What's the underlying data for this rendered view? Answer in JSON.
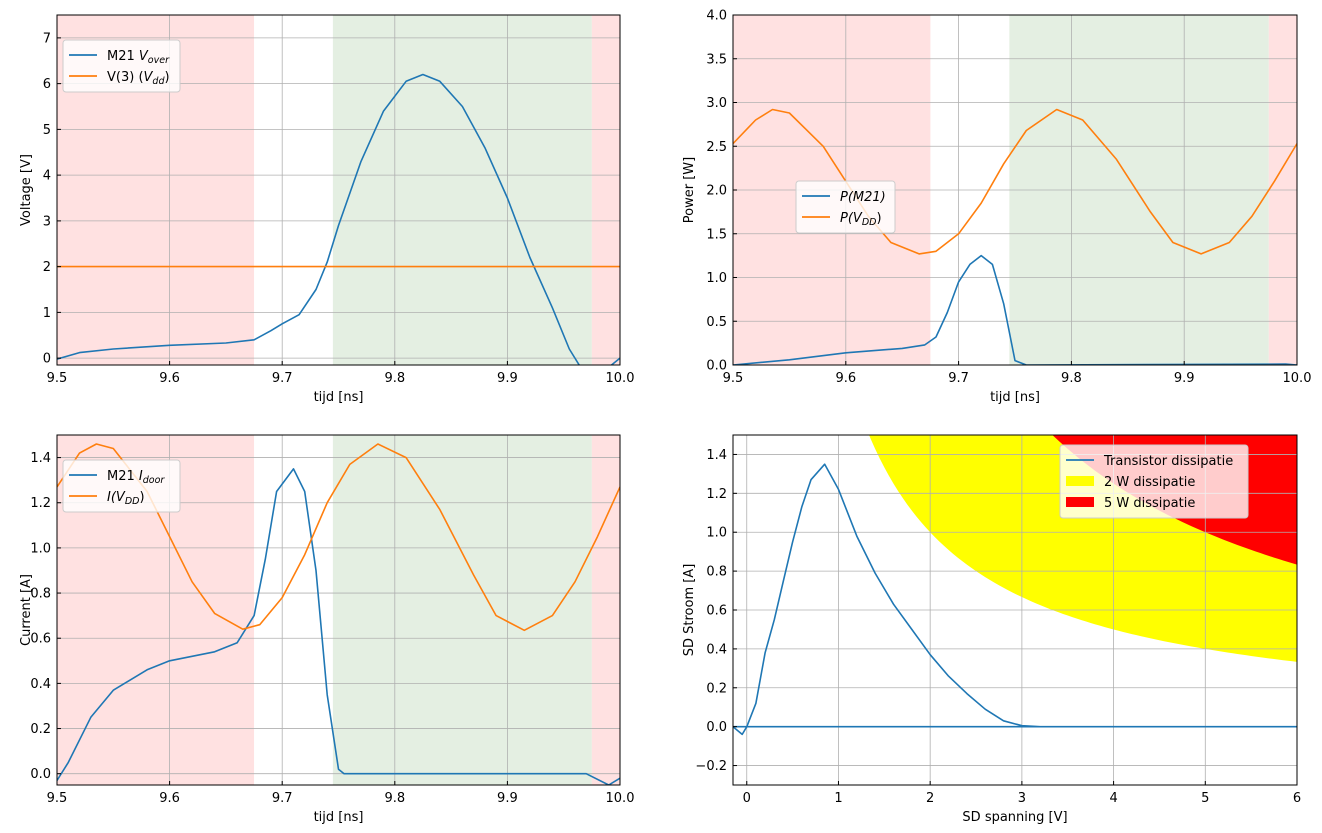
{
  "colors": {
    "blue": "#1f77b4",
    "orange": "#ff7f0e",
    "red_region": "#ffe1e1",
    "green_region": "#e4efe2",
    "yellow": "#ffff00",
    "red": "#ff0000"
  },
  "chart_data": [
    {
      "type": "line",
      "id": "voltage",
      "xlabel": "tijd [ns]",
      "ylabel": "Voltage [V]",
      "xlim": [
        9.5,
        10.0
      ],
      "ylim": [
        -0.15,
        7.5
      ],
      "xticks": [
        9.5,
        9.6,
        9.7,
        9.8,
        9.9,
        10.0
      ],
      "xtick_labels": [
        "9.5",
        "9.6",
        "9.7",
        "9.8",
        "9.9",
        "10.0"
      ],
      "yticks": [
        0,
        1,
        2,
        3,
        4,
        5,
        6,
        7
      ],
      "ytick_labels": [
        "0",
        "1",
        "2",
        "3",
        "4",
        "5",
        "6",
        "7"
      ],
      "grid": true,
      "legend_placement": "upper-left",
      "regions": [
        {
          "from": 9.5,
          "to": 9.675,
          "color": "red"
        },
        {
          "from": 9.745,
          "to": 9.975,
          "color": "green"
        },
        {
          "from": 9.975,
          "to": 10.0,
          "color": "red"
        }
      ],
      "series": [
        {
          "name": "M21 V_over",
          "legend": {
            "prefix": "M21 ",
            "italic": "V",
            "sub": "over",
            "suffix": ""
          },
          "color": "blue",
          "x": [
            9.5,
            9.52,
            9.55,
            9.6,
            9.65,
            9.675,
            9.69,
            9.7,
            9.715,
            9.73,
            9.74,
            9.75,
            9.77,
            9.79,
            9.81,
            9.825,
            9.84,
            9.86,
            9.88,
            9.9,
            9.92,
            9.94,
            9.955,
            9.965,
            9.99,
            10.0
          ],
          "y": [
            -0.02,
            0.12,
            0.2,
            0.28,
            0.33,
            0.4,
            0.6,
            0.75,
            0.95,
            1.5,
            2.1,
            2.9,
            4.3,
            5.4,
            6.05,
            6.2,
            6.05,
            5.5,
            4.6,
            3.5,
            2.2,
            1.1,
            0.2,
            -0.2,
            -0.2,
            0.0
          ]
        },
        {
          "name": "V(3) (V_dd)",
          "legend": {
            "prefix": "V(3) (",
            "italic": "V",
            "sub": "dd",
            "suffix": ")"
          },
          "color": "orange",
          "x": [
            9.5,
            10.0
          ],
          "y": [
            2,
            2
          ]
        }
      ]
    },
    {
      "type": "line",
      "id": "power",
      "xlabel": "tijd [ns]",
      "ylabel": "Power [W]",
      "xlim": [
        9.5,
        10.0
      ],
      "ylim": [
        0,
        4
      ],
      "xticks": [
        9.5,
        9.6,
        9.7,
        9.8,
        9.9,
        10.0
      ],
      "xtick_labels": [
        "9.5",
        "9.6",
        "9.7",
        "9.8",
        "9.9",
        "10.0"
      ],
      "yticks": [
        0,
        0.5,
        1,
        1.5,
        2,
        2.5,
        3,
        3.5,
        4
      ],
      "ytick_labels": [
        "0.0",
        "0.5",
        "1.0",
        "1.5",
        "2.0",
        "2.5",
        "3.0",
        "3.5",
        "4.0"
      ],
      "grid": true,
      "legend_placement": "center-left",
      "regions": [
        {
          "from": 9.5,
          "to": 9.675,
          "color": "red"
        },
        {
          "from": 9.745,
          "to": 9.975,
          "color": "green"
        },
        {
          "from": 9.975,
          "to": 10.0,
          "color": "red"
        }
      ],
      "series": [
        {
          "name": "P(M21)",
          "legend": {
            "prefix": "",
            "italic": "P(M21)",
            "sub": "",
            "suffix": ""
          },
          "color": "blue",
          "x": [
            9.5,
            9.55,
            9.6,
            9.65,
            9.67,
            9.68,
            9.69,
            9.7,
            9.71,
            9.72,
            9.73,
            9.74,
            9.75,
            9.76,
            9.99,
            10.0
          ],
          "y": [
            0,
            0.06,
            0.14,
            0.19,
            0.23,
            0.32,
            0.6,
            0.95,
            1.15,
            1.25,
            1.15,
            0.7,
            0.05,
            0,
            0.01,
            0
          ]
        },
        {
          "name": "P(V_DD)",
          "legend": {
            "prefix": "",
            "italic": "P(V",
            "sub": "DD",
            "suffix": ")"
          },
          "color": "orange",
          "x": [
            9.5,
            9.52,
            9.535,
            9.55,
            9.58,
            9.6,
            9.62,
            9.64,
            9.665,
            9.68,
            9.7,
            9.72,
            9.74,
            9.76,
            9.787,
            9.81,
            9.84,
            9.87,
            9.89,
            9.915,
            9.94,
            9.96,
            9.98,
            10.0
          ],
          "y": [
            2.53,
            2.8,
            2.92,
            2.88,
            2.5,
            2.1,
            1.7,
            1.4,
            1.27,
            1.3,
            1.5,
            1.85,
            2.3,
            2.68,
            2.92,
            2.8,
            2.35,
            1.75,
            1.4,
            1.27,
            1.4,
            1.7,
            2.1,
            2.53
          ]
        }
      ]
    },
    {
      "type": "line",
      "id": "current",
      "xlabel": "tijd [ns]",
      "ylabel": "Current [A]",
      "xlim": [
        9.5,
        10.0
      ],
      "ylim": [
        -0.05,
        1.5
      ],
      "xticks": [
        9.5,
        9.6,
        9.7,
        9.8,
        9.9,
        10.0
      ],
      "xtick_labels": [
        "9.5",
        "9.6",
        "9.7",
        "9.8",
        "9.9",
        "10.0"
      ],
      "yticks": [
        0,
        0.2,
        0.4,
        0.6,
        0.8,
        1.0,
        1.2,
        1.4
      ],
      "ytick_labels": [
        "0.0",
        "0.2",
        "0.4",
        "0.6",
        "0.8",
        "1.0",
        "1.2",
        "1.4"
      ],
      "grid": true,
      "legend_placement": "upper-left",
      "regions": [
        {
          "from": 9.5,
          "to": 9.675,
          "color": "red"
        },
        {
          "from": 9.745,
          "to": 9.975,
          "color": "green"
        },
        {
          "from": 9.975,
          "to": 10.0,
          "color": "red"
        }
      ],
      "series": [
        {
          "name": "M21 I_door",
          "legend": {
            "prefix": "M21 ",
            "italic": "I",
            "sub": "door",
            "suffix": ""
          },
          "color": "blue",
          "x": [
            9.5,
            9.51,
            9.53,
            9.55,
            9.58,
            9.6,
            9.64,
            9.66,
            9.675,
            9.685,
            9.695,
            9.71,
            9.72,
            9.73,
            9.74,
            9.75,
            9.755,
            9.97,
            9.99,
            10.0
          ],
          "y": [
            -0.03,
            0.05,
            0.25,
            0.37,
            0.46,
            0.5,
            0.54,
            0.58,
            0.7,
            0.95,
            1.25,
            1.35,
            1.25,
            0.9,
            0.35,
            0.02,
            0,
            0,
            -0.05,
            -0.02
          ]
        },
        {
          "name": "I(V_DD)",
          "legend": {
            "prefix": "",
            "italic": "I(V",
            "sub": "DD",
            "suffix": ")"
          },
          "color": "orange",
          "x": [
            9.5,
            9.52,
            9.535,
            9.55,
            9.58,
            9.6,
            9.62,
            9.64,
            9.665,
            9.68,
            9.7,
            9.72,
            9.74,
            9.76,
            9.785,
            9.81,
            9.84,
            9.87,
            9.89,
            9.915,
            9.94,
            9.96,
            9.98,
            10.0
          ],
          "y": [
            1.27,
            1.42,
            1.46,
            1.44,
            1.25,
            1.05,
            0.85,
            0.71,
            0.64,
            0.66,
            0.78,
            0.97,
            1.2,
            1.37,
            1.46,
            1.4,
            1.17,
            0.88,
            0.7,
            0.635,
            0.7,
            0.85,
            1.05,
            1.27
          ]
        }
      ]
    },
    {
      "type": "line",
      "id": "soa",
      "xlabel": "SD spanning [V]",
      "ylabel": "SD Stroom [A]",
      "xlim": [
        -0.15,
        6
      ],
      "ylim": [
        -0.3,
        1.5
      ],
      "xticks": [
        0,
        1,
        2,
        3,
        4,
        5,
        6
      ],
      "xtick_labels": [
        "0",
        "1",
        "2",
        "3",
        "4",
        "5",
        "6"
      ],
      "yticks": [
        -0.2,
        0,
        0.2,
        0.4,
        0.6,
        0.8,
        1.0,
        1.2,
        1.4
      ],
      "ytick_labels": [
        "−0.2",
        "0.0",
        "0.2",
        "0.4",
        "0.6",
        "0.8",
        "1.0",
        "1.2",
        "1.4"
      ],
      "grid": true,
      "legend_placement": "upper-right",
      "hyperbola_fills": [
        {
          "name": "2 W dissipatie",
          "power": 2,
          "color": "yellow"
        },
        {
          "name": "5 W dissipatie",
          "power": 5,
          "color": "red"
        }
      ],
      "series": [
        {
          "name": "Transistor dissipatie",
          "legend": {
            "prefix": "Transistor dissipatie",
            "italic": "",
            "sub": "",
            "suffix": ""
          },
          "color": "blue",
          "x": [
            6,
            -0.15,
            -0.05,
            0,
            0.1,
            0.2,
            0.3,
            0.4,
            0.5,
            0.6,
            0.7,
            0.85,
            1,
            1.2,
            1.4,
            1.6,
            1.8,
            2,
            2.2,
            2.4,
            2.6,
            2.8,
            3,
            3.2,
            6
          ],
          "y": [
            0,
            0,
            -0.04,
            0,
            0.12,
            0.38,
            0.55,
            0.75,
            0.95,
            1.13,
            1.27,
            1.35,
            1.22,
            0.98,
            0.79,
            0.63,
            0.5,
            0.37,
            0.26,
            0.17,
            0.09,
            0.03,
            0.005,
            0,
            0
          ]
        }
      ]
    }
  ]
}
